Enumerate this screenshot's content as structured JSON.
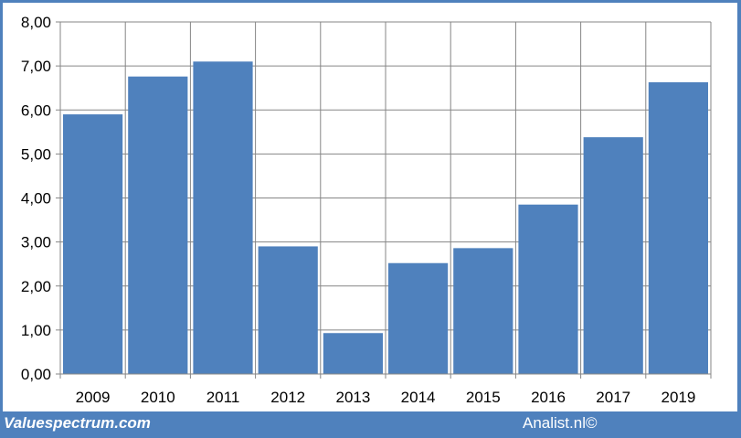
{
  "chart_data": {
    "type": "bar",
    "categories": [
      "2009",
      "2010",
      "2011",
      "2012",
      "2013",
      "2014",
      "2015",
      "2016",
      "2017",
      "2019"
    ],
    "values": [
      5.9,
      6.76,
      7.1,
      2.9,
      0.93,
      2.52,
      2.86,
      3.85,
      5.38,
      6.63
    ],
    "ylim": [
      0,
      8
    ],
    "yticks": [
      "0,00",
      "1,00",
      "2,00",
      "3,00",
      "4,00",
      "5,00",
      "6,00",
      "7,00",
      "8,00"
    ],
    "grid": true,
    "bar_color": "#4f81bd",
    "grid_color": "#868686"
  },
  "footer": {
    "left": "Valuespectrum.com",
    "right": "Analist.nl©"
  }
}
